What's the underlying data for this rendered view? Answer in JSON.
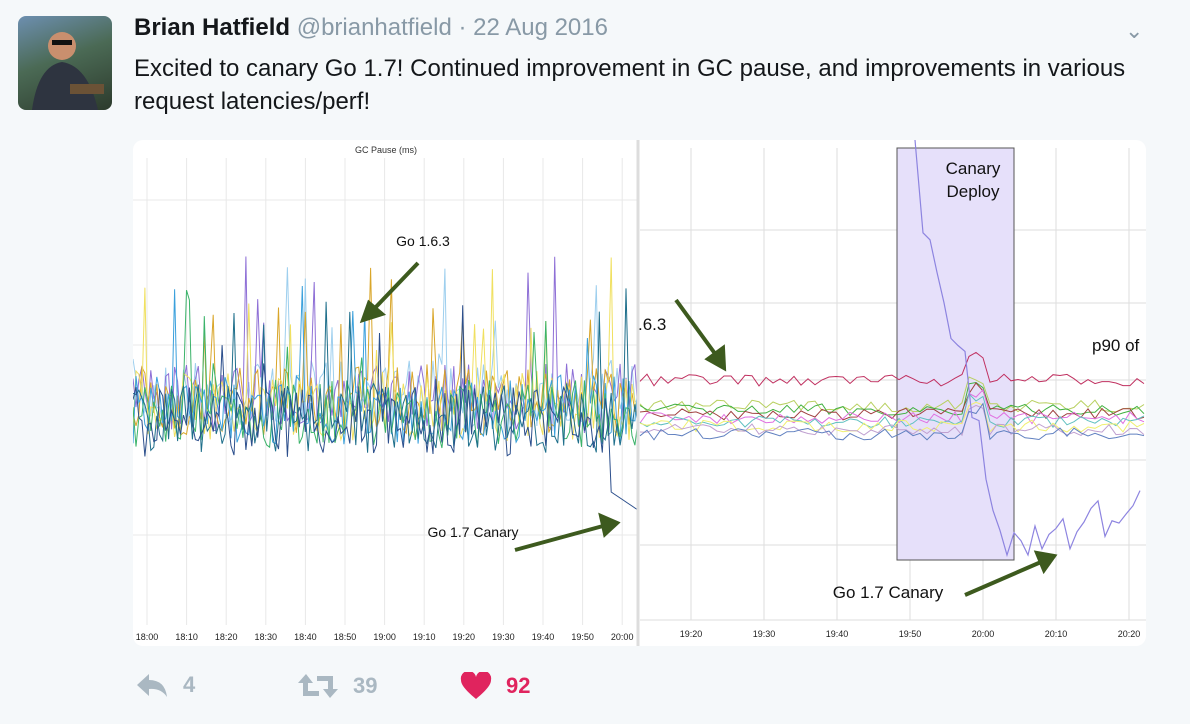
{
  "tweet": {
    "author_name": "Brian Hatfield",
    "handle": "@brianhatfield",
    "separator": "·",
    "date": "22 Aug 2016",
    "text": "Excited to canary Go 1.7! Continued improvement in GC pause, and improvements in various request latencies/perf!"
  },
  "media": {
    "left_chart": {
      "title": "GC Pause (ms)",
      "xticks": [
        "18:00",
        "18:10",
        "18:20",
        "18:30",
        "18:40",
        "18:50",
        "19:00",
        "19:10",
        "19:20",
        "19:30",
        "19:40",
        "19:50",
        "20:00"
      ],
      "annotation_old": "Go 1.6.3",
      "annotation_new": "Go 1.7 Canary"
    },
    "right_chart": {
      "xticks": [
        "19:20",
        "19:30",
        "19:40",
        "19:50",
        "20:00",
        "20:10",
        "20:20"
      ],
      "annotation_old": ".6.3",
      "annotation_new": "Go 1.7 Canary",
      "label_cut": "p90 of",
      "deploy_label_1": "Canary",
      "deploy_label_2": "Deploy"
    }
  },
  "actions": {
    "reply_count": "4",
    "retweet_count": "39",
    "like_count": "92",
    "like_color": "#e0245e",
    "icons": [
      "reply-icon",
      "retweet-icon",
      "heart-icon"
    ]
  }
}
